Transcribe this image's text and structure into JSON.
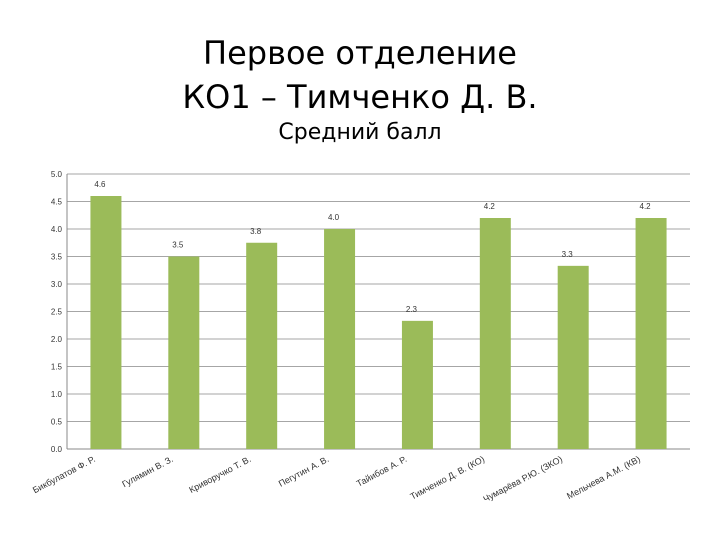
{
  "header": {
    "title_line1": "Первое отделение",
    "title_line2": "КО1 – Тимченко Д. В."
  },
  "chart_data": {
    "type": "bar",
    "title": "Средний балл",
    "categories": [
      "Бикбулатов Ф. Р.",
      "Гулямин В. З.",
      "Криворучко Т. В.",
      "Пегутин А. В.",
      "Тайибов А. Р.",
      "Тимченко Д. В. (КО)",
      "Чумарёва Р.Ю. (ЗКО)",
      "Мельчева А.М. (КВ)"
    ],
    "values": [
      4.6,
      3.5,
      3.75,
      4.0,
      2.33,
      4.2,
      3.33,
      4.2
    ],
    "data_labels": [
      "4.6",
      "3.5",
      "3.8",
      "4.0",
      "2.3",
      "4.2",
      "3.3",
      "4.2"
    ],
    "y_ticks": [
      "0.0",
      "0.5",
      "1.0",
      "1.5",
      "2.0",
      "2.5",
      "3.0",
      "3.5",
      "4.0",
      "4.5",
      "5.0"
    ],
    "ylim": [
      0,
      5
    ],
    "grid": true,
    "legend": "none",
    "bar_color": "#9bbb59"
  }
}
